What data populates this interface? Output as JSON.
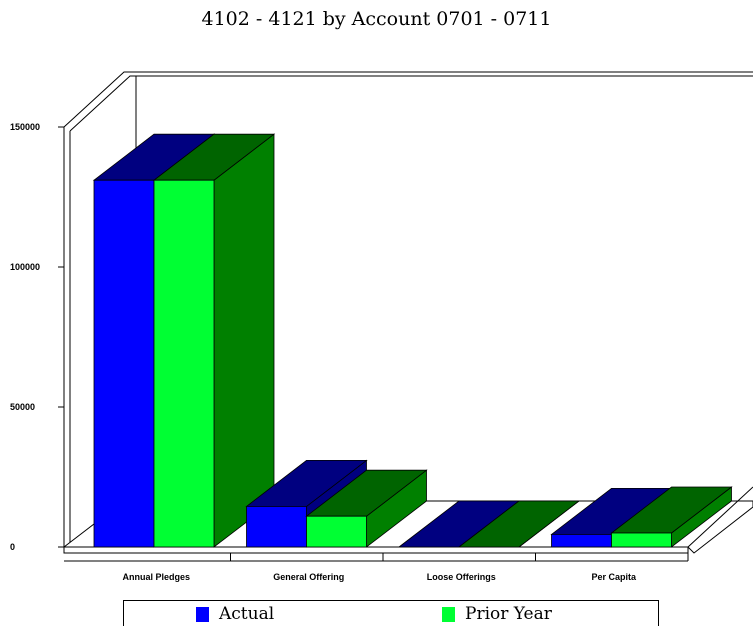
{
  "chart_data": {
    "type": "bar",
    "title": "4102 - 4121 by Account 0701 - 0711",
    "categories": [
      "Annual Pledges",
      "General Offering",
      "Loose Offerings",
      "Per Capita"
    ],
    "series": [
      {
        "name": "Actual",
        "values": [
          131000,
          14500,
          0,
          4500
        ],
        "color": "#0000ff"
      },
      {
        "name": "Prior Year",
        "values": [
          131000,
          11000,
          0,
          5000
        ],
        "color": "#00ff33"
      }
    ],
    "yticks": [
      0,
      50000,
      100000,
      150000
    ],
    "ytick_labels": [
      "0",
      "50000",
      "100000",
      "150000"
    ],
    "ylim": [
      0,
      150000
    ],
    "grid": false,
    "legend_position": "bottom",
    "style": "3d"
  }
}
